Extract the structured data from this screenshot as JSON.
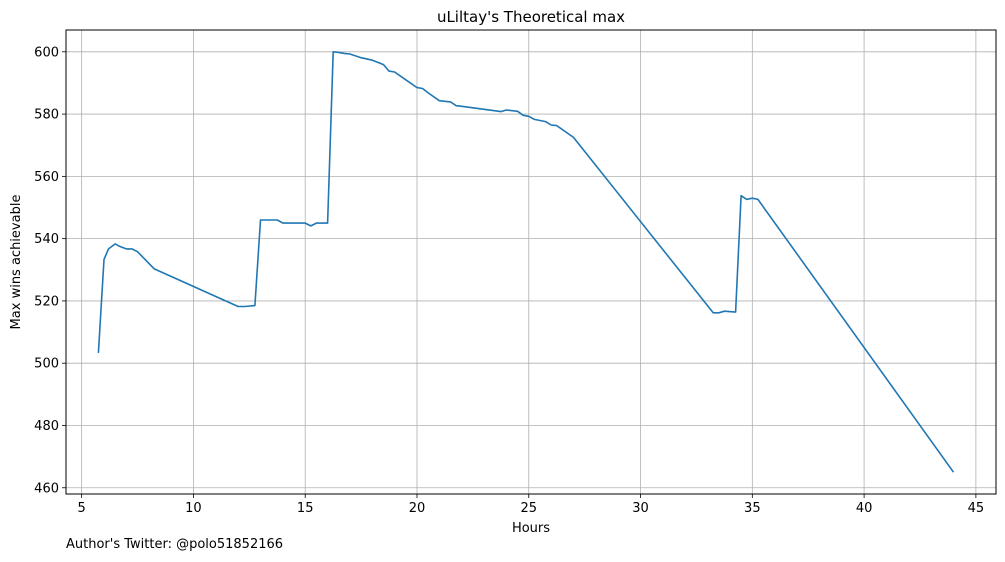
{
  "footer_text": "Author's Twitter: @polo51852166",
  "chart_data": {
    "type": "line",
    "title": "uLiltay's Theoretical max",
    "xlabel": "Hours",
    "ylabel": "Max wins achievable",
    "xlim": [
      4.3,
      45.9
    ],
    "ylim": [
      458,
      607
    ],
    "xticks": [
      5,
      10,
      15,
      20,
      25,
      30,
      35,
      40,
      45
    ],
    "yticks": [
      460,
      480,
      500,
      520,
      540,
      560,
      580,
      600
    ],
    "grid": true,
    "line_color": "#1f77b4",
    "series": [
      {
        "x": [
          5.75,
          6.0,
          6.2,
          6.5,
          6.7,
          7.0,
          7.25,
          7.5,
          8.25,
          12.0,
          12.3,
          12.75,
          13.0,
          13.25,
          13.75,
          14.0,
          14.5,
          15.0,
          15.25,
          15.5,
          16.0,
          16.25,
          16.5,
          16.75,
          17.0,
          17.5,
          18.0,
          18.5,
          18.75,
          19.0,
          19.5,
          20.0,
          20.25,
          20.5,
          21.0,
          21.5,
          21.75,
          22.0,
          23.75,
          24.0,
          24.5,
          24.75,
          25.0,
          25.25,
          25.75,
          26.0,
          26.25,
          27.0,
          33.25,
          33.5,
          33.75,
          34.25,
          34.5,
          34.75,
          35.0,
          35.25,
          44.0
        ],
        "y": [
          503.3,
          533.3,
          536.7,
          538.3,
          537.5,
          536.7,
          536.7,
          535.8,
          530.3,
          518.2,
          518.2,
          518.5,
          546.0,
          546.0,
          546.0,
          545.0,
          545.0,
          545.0,
          544.1,
          545.0,
          545.0,
          600.0,
          599.8,
          599.5,
          599.3,
          598.1,
          597.3,
          595.9,
          593.8,
          593.5,
          591.0,
          588.5,
          588.2,
          586.8,
          584.3,
          583.9,
          582.7,
          582.5,
          580.8,
          581.3,
          580.9,
          579.6,
          579.3,
          578.3,
          577.6,
          576.5,
          576.3,
          572.5,
          516.2,
          516.2,
          516.7,
          516.4,
          553.8,
          552.6,
          553.0,
          552.6,
          465.0
        ]
      }
    ]
  }
}
